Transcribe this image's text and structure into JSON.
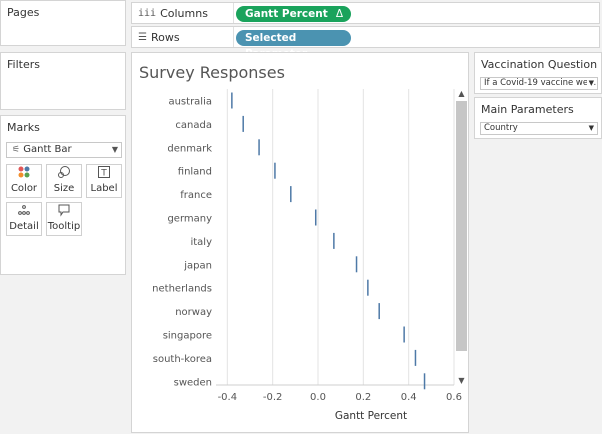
{
  "pages_panel": {
    "title": "Pages"
  },
  "filters_panel": {
    "title": "Filters"
  },
  "marks_panel": {
    "title": "Marks",
    "mark_type": "Gantt Bar",
    "buttons": [
      {
        "label": "Color",
        "icon": "color-dots-icon"
      },
      {
        "label": "Size",
        "icon": "size-icon"
      },
      {
        "label": "Label",
        "icon": "label-icon"
      },
      {
        "label": "Detail",
        "icon": "detail-icon"
      },
      {
        "label": "Tooltip",
        "icon": "tooltip-icon"
      }
    ]
  },
  "shelves": {
    "columns": {
      "label": "Columns",
      "pill": "Gantt Percent",
      "pill_suffix": "Δ",
      "color": "#1aa35c"
    },
    "rows": {
      "label": "Rows",
      "pill": "Selected Parameter",
      "color": "#4b93b1"
    }
  },
  "vaccination_panel": {
    "title": "Vaccination Question",
    "value": "If a Covid-19 vaccine we..."
  },
  "main_params_panel": {
    "title": "Main Parameters",
    "value": "Country"
  },
  "chart": {
    "title": "Survey Responses"
  },
  "chart_data": {
    "type": "bar",
    "title": "Survey Responses",
    "xlabel": "Gantt Percent",
    "ylabel": "",
    "categories": [
      "australia",
      "canada",
      "denmark",
      "finland",
      "france",
      "germany",
      "italy",
      "japan",
      "netherlands",
      "norway",
      "singapore",
      "south-korea",
      "sweden"
    ],
    "values": [
      -0.38,
      -0.33,
      -0.26,
      -0.19,
      -0.12,
      -0.01,
      0.07,
      0.17,
      0.22,
      0.27,
      0.38,
      0.43,
      0.47
    ],
    "xlim": [
      -0.45,
      0.6
    ],
    "xticks": [
      -0.4,
      -0.2,
      0.0,
      0.2,
      0.4,
      0.6
    ],
    "xtick_labels": [
      "-0.4",
      "-0.2",
      "0.0",
      "0.2",
      "0.4",
      "0.6"
    ],
    "grid": true,
    "mark_color": "#4e79a7"
  }
}
